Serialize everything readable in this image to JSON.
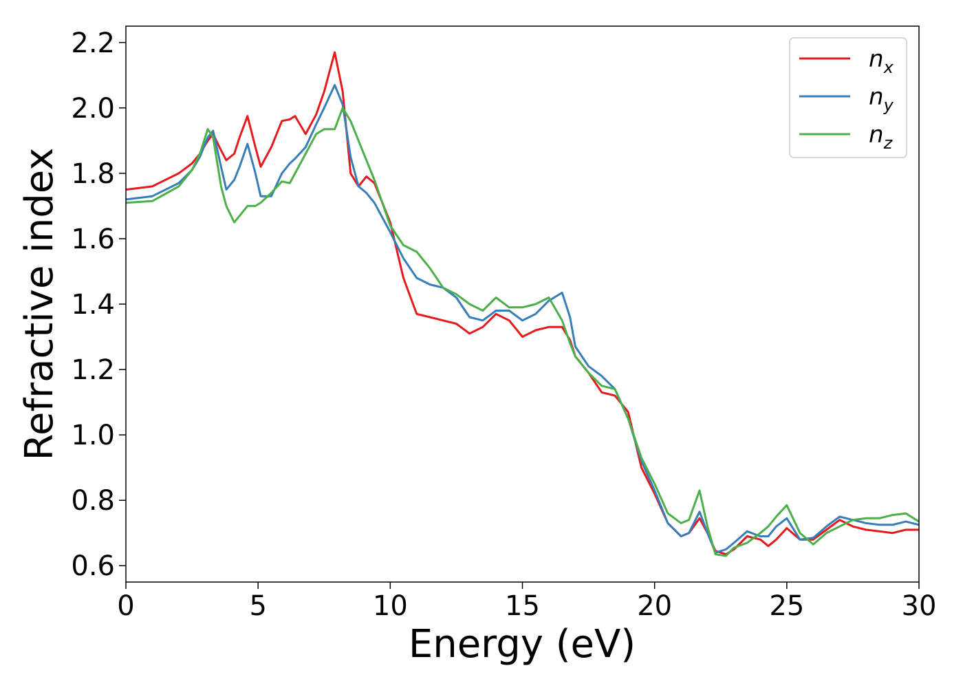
{
  "chart_data": {
    "type": "line",
    "xlabel": "Energy (eV)",
    "ylabel": "Refractive index",
    "xlim": [
      0,
      30
    ],
    "ylim": [
      0.55,
      2.25
    ],
    "xticks": [
      0,
      5,
      10,
      15,
      20,
      25,
      30
    ],
    "yticks": [
      0.6,
      0.8,
      {
        "value": 1,
        "label": "1.0"
      },
      1.2,
      1.4,
      1.6,
      1.8,
      {
        "value": 2,
        "label": "2.0"
      },
      2.2
    ],
    "legend": "upper right",
    "x": [
      0,
      1,
      2,
      2.5,
      2.8,
      3.1,
      3.3,
      3.6,
      3.8,
      4.1,
      4.3,
      4.6,
      4.9,
      5.1,
      5.5,
      5.9,
      6.2,
      6.4,
      6.8,
      7.2,
      7.5,
      7.9,
      8.2,
      8.5,
      8.8,
      9.1,
      9.4,
      10,
      10.5,
      11,
      11.5,
      12,
      12.5,
      13,
      13.5,
      14,
      14.5,
      15,
      15.5,
      16,
      16.5,
      16.8,
      17,
      17.5,
      18,
      18.5,
      19,
      19.5,
      20,
      20.5,
      21,
      21.3,
      21.7,
      22,
      22.3,
      22.7,
      23,
      23.5,
      24,
      24.3,
      24.6,
      25,
      25.5,
      26,
      26.5,
      27,
      27.5,
      28,
      28.5,
      29,
      29.5,
      30
    ],
    "series": [
      {
        "name": "n_x",
        "color": "#e41a1c",
        "values": [
          1.75,
          1.76,
          1.8,
          1.83,
          1.86,
          1.9,
          1.92,
          1.87,
          1.84,
          1.86,
          1.91,
          1.975,
          1.88,
          1.82,
          1.88,
          1.96,
          1.965,
          1.975,
          1.92,
          1.98,
          2.05,
          2.17,
          2.05,
          1.8,
          1.76,
          1.79,
          1.77,
          1.65,
          1.48,
          1.37,
          1.36,
          1.35,
          1.34,
          1.31,
          1.33,
          1.37,
          1.35,
          1.3,
          1.32,
          1.33,
          1.33,
          1.29,
          1.24,
          1.19,
          1.13,
          1.12,
          1.07,
          0.9,
          0.82,
          0.73,
          0.69,
          0.7,
          0.745,
          0.7,
          0.645,
          0.635,
          0.65,
          0.69,
          0.68,
          0.66,
          0.68,
          0.715,
          0.68,
          0.68,
          0.71,
          0.74,
          0.72,
          0.71,
          0.705,
          0.7,
          0.71,
          0.71
        ]
      },
      {
        "name": "n_y",
        "color": "#377eb8",
        "values": [
          1.72,
          1.73,
          1.77,
          1.81,
          1.85,
          1.91,
          1.93,
          1.82,
          1.75,
          1.78,
          1.82,
          1.89,
          1.8,
          1.73,
          1.73,
          1.8,
          1.83,
          1.845,
          1.88,
          1.95,
          2.0,
          2.07,
          2.01,
          1.85,
          1.76,
          1.74,
          1.71,
          1.62,
          1.54,
          1.48,
          1.46,
          1.45,
          1.42,
          1.36,
          1.35,
          1.38,
          1.38,
          1.35,
          1.37,
          1.41,
          1.435,
          1.36,
          1.27,
          1.21,
          1.18,
          1.14,
          1.05,
          0.92,
          0.83,
          0.73,
          0.69,
          0.7,
          0.765,
          0.7,
          0.64,
          0.65,
          0.67,
          0.705,
          0.69,
          0.69,
          0.72,
          0.745,
          0.68,
          0.685,
          0.72,
          0.75,
          0.74,
          0.73,
          0.725,
          0.725,
          0.735,
          0.725
        ]
      },
      {
        "name": "n_z",
        "color": "#4daf4a",
        "values": [
          1.71,
          1.715,
          1.76,
          1.81,
          1.86,
          1.935,
          1.91,
          1.76,
          1.7,
          1.65,
          1.67,
          1.7,
          1.7,
          1.71,
          1.74,
          1.775,
          1.77,
          1.8,
          1.86,
          1.92,
          1.935,
          1.935,
          2.0,
          1.96,
          1.9,
          1.84,
          1.78,
          1.64,
          1.58,
          1.56,
          1.51,
          1.45,
          1.43,
          1.4,
          1.38,
          1.42,
          1.39,
          1.39,
          1.4,
          1.42,
          1.35,
          1.28,
          1.24,
          1.19,
          1.15,
          1.14,
          1.05,
          0.93,
          0.85,
          0.76,
          0.73,
          0.74,
          0.83,
          0.72,
          0.635,
          0.63,
          0.655,
          0.67,
          0.7,
          0.72,
          0.75,
          0.785,
          0.7,
          0.665,
          0.7,
          0.72,
          0.74,
          0.745,
          0.745,
          0.755,
          0.76,
          0.735
        ]
      }
    ]
  }
}
